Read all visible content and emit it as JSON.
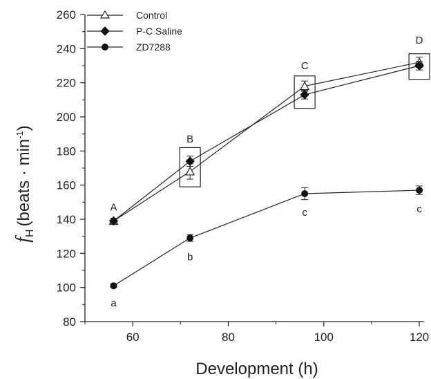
{
  "chart_data": {
    "type": "line",
    "title": "",
    "xlabel": "Development (h)",
    "ylabel_symbol": "f",
    "ylabel_subscript": "H",
    "ylabel_units": "(beats · min",
    "ylabel_exponent": "-1",
    "ylabel_close": ")",
    "xlim": [
      50,
      121
    ],
    "ylim": [
      80,
      260
    ],
    "x_ticks": [
      60,
      80,
      100,
      120
    ],
    "y_ticks": [
      80,
      100,
      120,
      140,
      160,
      180,
      200,
      220,
      240,
      260
    ],
    "grid": false,
    "legend_position": "top-left",
    "x": [
      56,
      72,
      96,
      120
    ],
    "series": [
      {
        "name": "Control",
        "marker": "open-triangle",
        "values": [
          139,
          168,
          218,
          232
        ],
        "errors": [
          1.5,
          4.5,
          3,
          3
        ]
      },
      {
        "name": "P-C Saline",
        "marker": "filled-diamond",
        "values": [
          139,
          174,
          213,
          230
        ],
        "errors": [
          1.5,
          3,
          2.5,
          2.5
        ]
      },
      {
        "name": "ZD7288",
        "marker": "filled-circle",
        "values": [
          101,
          129,
          155,
          157
        ],
        "errors": [
          1,
          2,
          3.5,
          2.5
        ]
      }
    ],
    "annotations": [
      {
        "text": "A",
        "x": 56,
        "y": 147
      },
      {
        "text": "B",
        "x": 72,
        "y": 187
      },
      {
        "text": "C",
        "x": 96,
        "y": 230
      },
      {
        "text": "D",
        "x": 120,
        "y": 245
      },
      {
        "text": "a",
        "x": 56,
        "y": 91
      },
      {
        "text": "b",
        "x": 72,
        "y": 118
      },
      {
        "text": "c",
        "x": 96,
        "y": 144
      },
      {
        "text": "c",
        "x": 120,
        "y": 146
      }
    ],
    "group_boxes": [
      {
        "x": 72,
        "y_low": 159,
        "y_high": 182
      },
      {
        "x": 96,
        "y_low": 205,
        "y_high": 224
      },
      {
        "x": 120,
        "y_low": 222,
        "y_high": 237
      }
    ]
  }
}
